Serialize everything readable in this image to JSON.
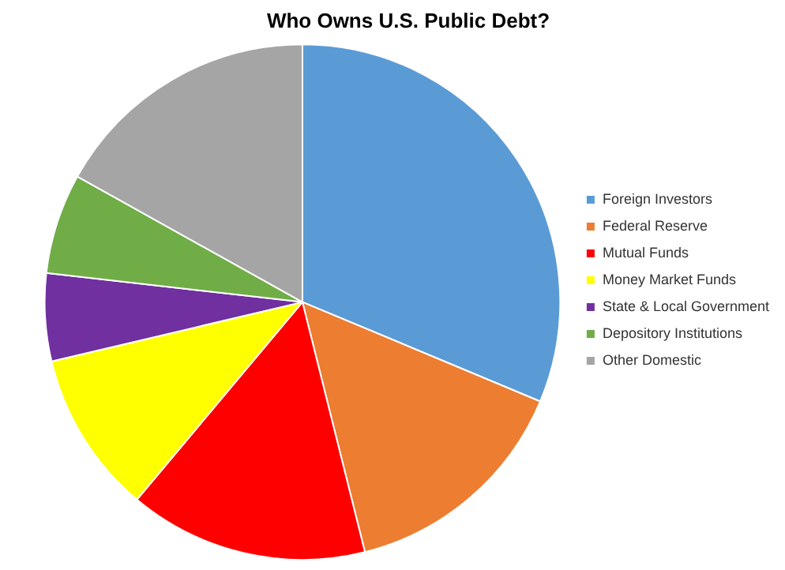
{
  "chart_data": {
    "type": "pie",
    "title": "Who Owns U.S. Public Debt?",
    "categories": [
      "Foreign Investors",
      "Federal Reserve",
      "Mutual Funds",
      "Money Market Funds",
      "State & Local Government",
      "Depository Institutions",
      "Other Domestic"
    ],
    "values": [
      31.3,
      14.8,
      15.0,
      10.2,
      5.5,
      6.3,
      16.9
    ],
    "colors": [
      "#5b9bd5",
      "#ed7d31",
      "#ff0000",
      "#ffff00",
      "#7030a0",
      "#70ad47",
      "#a5a5a5"
    ],
    "legend": "right"
  }
}
